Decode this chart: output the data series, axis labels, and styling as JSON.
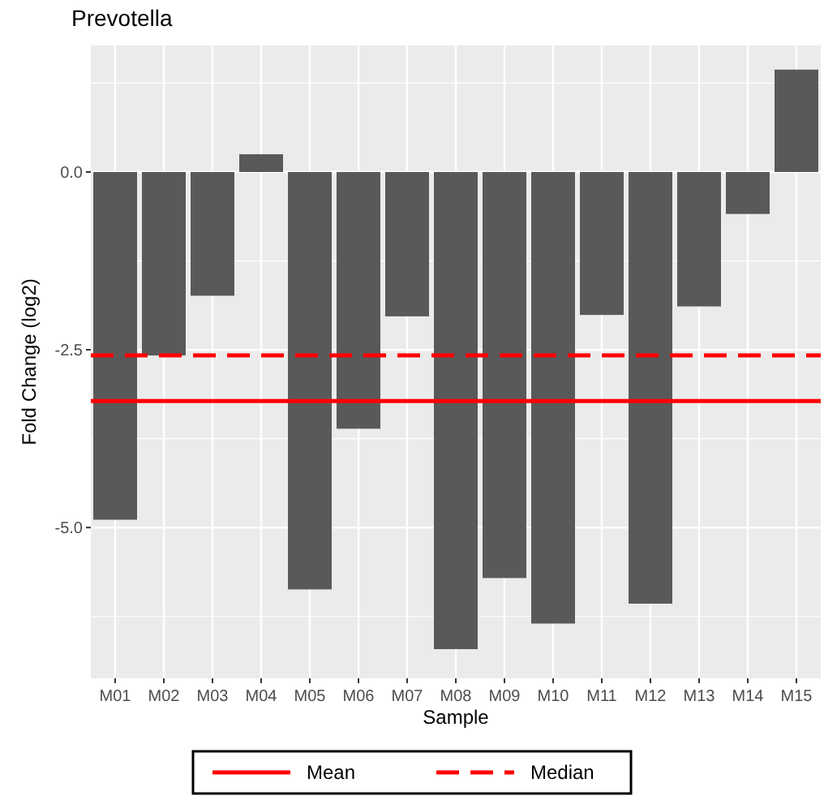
{
  "chart_data": {
    "type": "bar",
    "title": "Prevotella",
    "xlabel": "Sample",
    "ylabel": "Fold Change (log2)",
    "categories": [
      "M01",
      "M02",
      "M03",
      "M04",
      "M05",
      "M06",
      "M07",
      "M08",
      "M09",
      "M10",
      "M11",
      "M12",
      "M13",
      "M14",
      "M15"
    ],
    "values": [
      -4.89,
      -2.58,
      -1.74,
      0.25,
      -5.87,
      -3.61,
      -2.03,
      -6.71,
      -5.71,
      -6.35,
      -2.01,
      -6.07,
      -1.89,
      -0.59,
      1.44
    ],
    "color": "#595959",
    "ylim": [
      -7.12,
      1.78
    ],
    "yticks": [
      {
        "value": -5,
        "label": "-5.0"
      },
      {
        "value": -2.5,
        "label": "-2.5"
      },
      {
        "value": 0,
        "label": "0.0"
      }
    ],
    "grid": true,
    "legend": "bottom",
    "ref_lines": [
      {
        "axis": "y",
        "value": -3.22,
        "label": "Mean",
        "color": "#ff0000",
        "line_style": "solid"
      },
      {
        "axis": "y",
        "value": -2.58,
        "label": "Median",
        "color": "#ff0000",
        "line_style": "dashed"
      }
    ]
  }
}
